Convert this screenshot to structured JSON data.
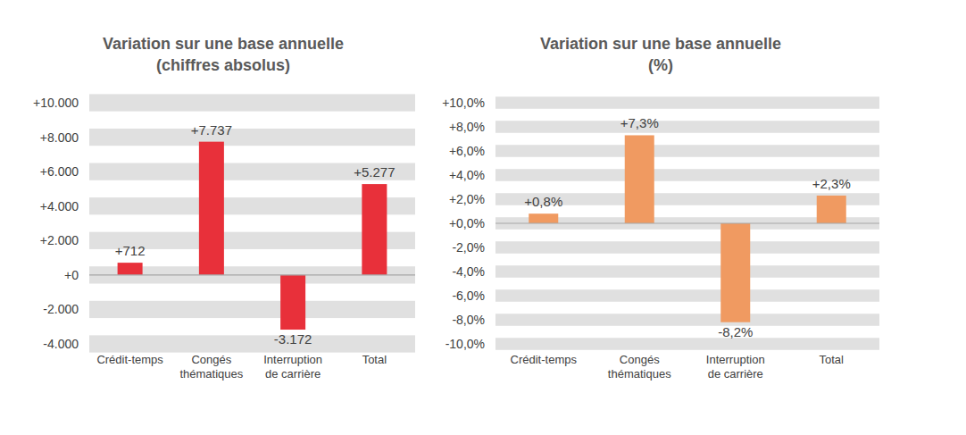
{
  "chart_data": [
    {
      "type": "bar",
      "title": "Variation sur une base annuelle",
      "subtitle": "(chiffres absolus)",
      "categories": [
        "Crédit-temps",
        "Congés thématiques",
        "Interruption de carrière",
        "Total"
      ],
      "values": [
        712,
        7737,
        -3172,
        5277
      ],
      "value_labels": [
        "+712",
        "+7.737",
        "-3.172",
        "+5.277"
      ],
      "color": "#e8303a",
      "ylim": [
        -4000,
        10000
      ],
      "yticks": [
        {
          "value": -4000,
          "label": "-4.000"
        },
        {
          "value": -2000,
          "label": "-2.000"
        },
        {
          "value": 0,
          "label": "+0"
        },
        {
          "value": 2000,
          "label": "+2.000"
        },
        {
          "value": 4000,
          "label": "+4.000"
        },
        {
          "value": 6000,
          "label": "+6.000"
        },
        {
          "value": 8000,
          "label": "+8.000"
        },
        {
          "value": 10000,
          "label": "+10.000"
        }
      ],
      "grid": true,
      "data_labels": true
    },
    {
      "type": "bar",
      "title": "Variation sur une base annuelle",
      "subtitle": "(%)",
      "categories": [
        "Crédit-temps",
        "Congés thématiques",
        "Interruption de carrière",
        "Total"
      ],
      "values": [
        0.8,
        7.3,
        -8.2,
        2.3
      ],
      "value_labels": [
        "+0,8%",
        "+7,3%",
        "-8,2%",
        "+2,3%"
      ],
      "color": "#f09a61",
      "ylim": [
        -10,
        10
      ],
      "yticks": [
        {
          "value": -10,
          "label": "-10,0%"
        },
        {
          "value": -8,
          "label": "-8,0%"
        },
        {
          "value": -6,
          "label": "-6,0%"
        },
        {
          "value": -4,
          "label": "-4,0%"
        },
        {
          "value": -2,
          "label": "-2,0%"
        },
        {
          "value": 0,
          "label": "+0,0%"
        },
        {
          "value": 2,
          "label": "+2,0%"
        },
        {
          "value": 4,
          "label": "+4,0%"
        },
        {
          "value": 6,
          "label": "+6,0%"
        },
        {
          "value": 8,
          "label": "+8,0%"
        },
        {
          "value": 10,
          "label": "+10,0%"
        }
      ],
      "grid": true,
      "data_labels": true
    }
  ]
}
